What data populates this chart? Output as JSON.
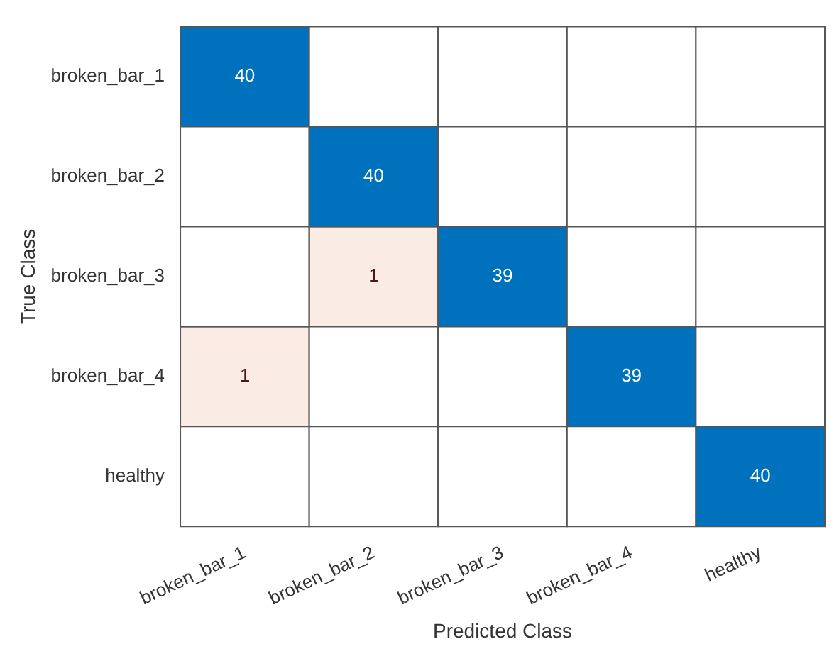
{
  "chart_data": {
    "type": "heatmap",
    "xlabel": "Predicted Class",
    "ylabel": "True Class",
    "categories": [
      "broken_bar_1",
      "broken_bar_2",
      "broken_bar_3",
      "broken_bar_4",
      "healthy"
    ],
    "y_categories": [
      "broken_bar_1",
      "broken_bar_2",
      "broken_bar_3",
      "broken_bar_4",
      "healthy"
    ],
    "cells": [
      [
        40,
        null,
        null,
        null,
        null
      ],
      [
        null,
        40,
        null,
        null,
        null
      ],
      [
        null,
        1,
        39,
        null,
        null
      ],
      [
        1,
        null,
        null,
        39,
        null
      ],
      [
        null,
        null,
        null,
        null,
        40
      ]
    ],
    "data_labels": true
  }
}
